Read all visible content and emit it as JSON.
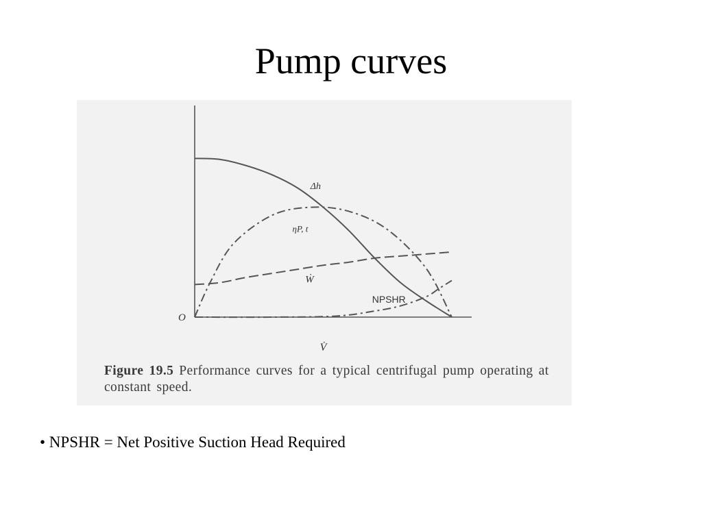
{
  "slide": {
    "title": "Pump curves",
    "bullet": "• NPSHR = Net Positive Suction Head Required"
  },
  "figure": {
    "label": "Figure 19.5",
    "caption": "Performance curves for a typical centrifugal pump operating at constant speed."
  },
  "chart_data": {
    "type": "line",
    "title": "",
    "xlabel": "V̇",
    "ylabel": "",
    "origin_label": "O",
    "grid": false,
    "legend": "none",
    "xlim": [
      0,
      1
    ],
    "ylim": [
      0,
      1
    ],
    "series": [
      {
        "name": "Δh",
        "style": "solid",
        "points": [
          [
            0,
            0.78
          ],
          [
            0.1,
            0.775
          ],
          [
            0.2,
            0.745
          ],
          [
            0.3,
            0.7
          ],
          [
            0.4,
            0.635
          ],
          [
            0.5,
            0.54
          ],
          [
            0.6,
            0.425
          ],
          [
            0.7,
            0.29
          ],
          [
            0.8,
            0.17
          ],
          [
            0.9,
            0.08
          ],
          [
            1.0,
            0.0
          ]
        ]
      },
      {
        "name": "ηP, t",
        "style": "dash-dot",
        "points": [
          [
            0,
            0.0
          ],
          [
            0.06,
            0.17
          ],
          [
            0.15,
            0.36
          ],
          [
            0.3,
            0.5
          ],
          [
            0.45,
            0.54
          ],
          [
            0.6,
            0.52
          ],
          [
            0.75,
            0.43
          ],
          [
            0.9,
            0.24
          ],
          [
            1.0,
            0.0
          ]
        ]
      },
      {
        "name": "Ẇ",
        "style": "dashed",
        "points": [
          [
            0,
            0.16
          ],
          [
            0.1,
            0.17
          ],
          [
            0.2,
            0.195
          ],
          [
            0.3,
            0.215
          ],
          [
            0.4,
            0.235
          ],
          [
            0.5,
            0.255
          ],
          [
            0.6,
            0.27
          ],
          [
            0.7,
            0.29
          ],
          [
            0.8,
            0.3
          ],
          [
            0.9,
            0.31
          ],
          [
            1.0,
            0.32
          ]
        ]
      },
      {
        "name": "NPSHR",
        "style": "dash-dot",
        "points": [
          [
            0,
            0.0
          ],
          [
            0.3,
            0.0
          ],
          [
            0.55,
            0.005
          ],
          [
            0.7,
            0.03
          ],
          [
            0.8,
            0.055
          ],
          [
            0.9,
            0.1
          ],
          [
            0.95,
            0.14
          ],
          [
            1.0,
            0.18
          ]
        ]
      }
    ]
  }
}
